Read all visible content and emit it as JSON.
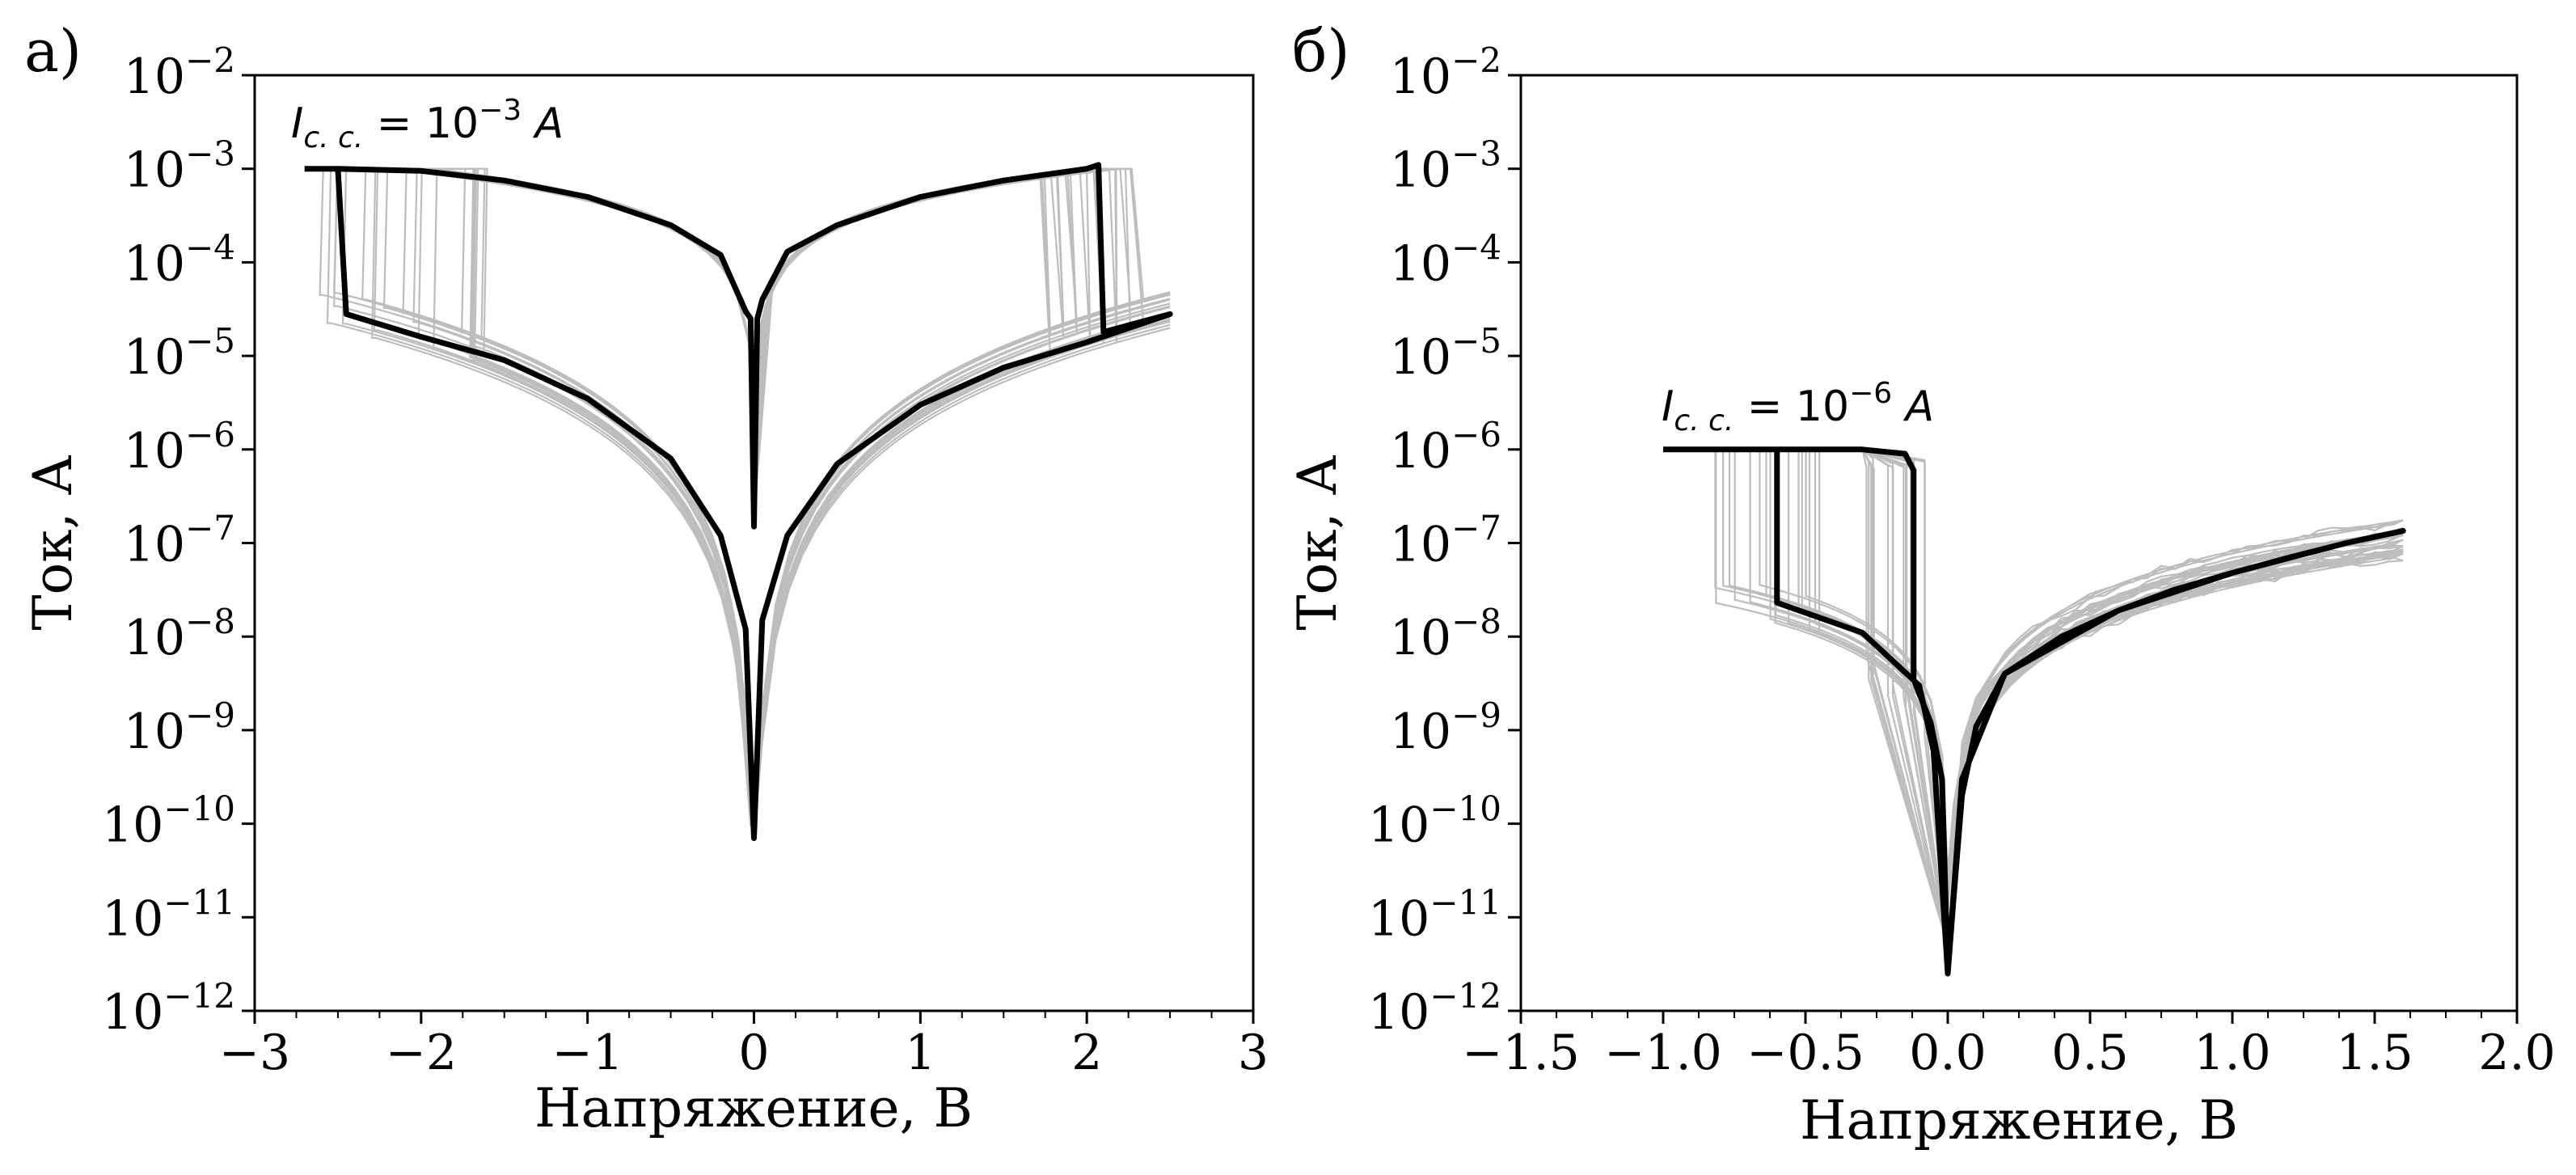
{
  "chart_data": [
    {
      "panel_label": "а)",
      "type": "line",
      "yscale": "log",
      "xlabel": "Напряжение, В",
      "ylabel": "Ток, А",
      "xlim": [
        -3,
        3
      ],
      "ylim": [
        1e-12,
        0.01
      ],
      "x_ticks": [
        -3,
        -2,
        -1,
        0,
        1,
        2,
        3
      ],
      "x_tick_labels": [
        "−3",
        "−2",
        "−1",
        "0",
        "1",
        "2",
        "3"
      ],
      "y_ticks": [
        1e-12,
        1e-11,
        1e-10,
        1e-09,
        1e-08,
        1e-07,
        1e-06,
        1e-05,
        0.0001,
        0.001,
        0.01
      ],
      "y_tick_exponents": [
        "−12",
        "−11",
        "−10",
        "−9",
        "−8",
        "−7",
        "−6",
        "−5",
        "−4",
        "−3",
        "−2"
      ],
      "annotation": {
        "sub": "c. c.",
        "exp": "−3",
        "unit": "A"
      },
      "colors": {
        "highlight": "#000000",
        "ensemble": "#bdbdbd"
      },
      "series": [
        {
          "role": "highlighted-cycle",
          "points": [
            [
              -2.7,
              0.001
            ],
            [
              -2.5,
              0.001
            ],
            [
              -2.0,
              0.00095
            ],
            [
              -1.5,
              0.00075
            ],
            [
              -1.0,
              0.0005
            ],
            [
              -0.5,
              0.00025
            ],
            [
              -0.2,
              0.00012
            ],
            [
              -0.05,
              3e-05
            ],
            [
              -0.02,
              2.5e-05
            ],
            [
              0.0,
              1.5e-07
            ],
            [
              0.02,
              2.5e-05
            ],
            [
              0.05,
              4e-05
            ],
            [
              0.2,
              0.00013
            ],
            [
              0.5,
              0.00025
            ],
            [
              1.0,
              0.0005
            ],
            [
              1.5,
              0.00075
            ],
            [
              2.0,
              0.001
            ],
            [
              2.07,
              0.0011
            ],
            [
              2.1,
              1.8e-05
            ],
            [
              2.5,
              2.8e-05
            ],
            [
              2.0,
              1.4e-05
            ],
            [
              1.5,
              7.5e-06
            ],
            [
              1.0,
              3e-06
            ],
            [
              0.5,
              7e-07
            ],
            [
              0.2,
              1.2e-07
            ],
            [
              0.05,
              1.5e-08
            ],
            [
              0.0,
              7e-11
            ],
            [
              -0.05,
              1.2e-08
            ],
            [
              -0.2,
              1.2e-07
            ],
            [
              -0.5,
              8e-07
            ],
            [
              -1.0,
              3.5e-06
            ],
            [
              -1.5,
              9e-06
            ],
            [
              -2.0,
              1.6e-05
            ],
            [
              -2.45,
              2.8e-05
            ],
            [
              -2.5,
              0.001
            ]
          ]
        }
      ],
      "ensemble": {
        "cycles": 20,
        "set_voltage_range": [
          -2.6,
          -1.6
        ],
        "reset_voltage_range": [
          1.7,
          2.3
        ],
        "hrs_scale_range": [
          0.55,
          1.7
        ],
        "lrs_scale_range": [
          0.9,
          1.1
        ]
      }
    },
    {
      "panel_label": "б)",
      "type": "line",
      "yscale": "log",
      "xlabel": "Напряжение, В",
      "ylabel": "Ток, А",
      "xlim": [
        -1.5,
        2.0
      ],
      "ylim": [
        1e-12,
        0.01
      ],
      "x_ticks": [
        -1.5,
        -1.0,
        -0.5,
        0.0,
        0.5,
        1.0,
        1.5,
        2.0
      ],
      "x_tick_labels": [
        "−1.5",
        "−1.0",
        "−0.5",
        "0.0",
        "0.5",
        "1.0",
        "1.5",
        "2.0"
      ],
      "y_ticks": [
        1e-12,
        1e-11,
        1e-10,
        1e-09,
        1e-08,
        1e-07,
        1e-06,
        1e-05,
        0.0001,
        0.001,
        0.01
      ],
      "y_tick_exponents": [
        "−12",
        "−11",
        "−10",
        "−9",
        "−8",
        "−7",
        "−6",
        "−5",
        "−4",
        "−3",
        "−2"
      ],
      "annotation": {
        "sub": "c. c.",
        "exp": "−6",
        "unit": "A"
      },
      "colors": {
        "highlight": "#000000",
        "ensemble": "#bdbdbd"
      },
      "series": [
        {
          "role": "highlighted-cycle",
          "points": [
            [
              -1.0,
              1e-06
            ],
            [
              -0.6,
              1e-06
            ],
            [
              -0.3,
              1e-06
            ],
            [
              -0.15,
              9e-07
            ],
            [
              -0.12,
              6e-07
            ],
            [
              -0.12,
              3.5e-09
            ],
            [
              -0.06,
              1.2e-09
            ],
            [
              -0.02,
              3e-10
            ],
            [
              0.0,
              2.5e-12
            ],
            [
              0.02,
              1.5e-11
            ],
            [
              0.05,
              2e-10
            ],
            [
              0.1,
              1.1e-09
            ],
            [
              0.2,
              4e-09
            ],
            [
              0.4,
              1e-08
            ],
            [
              0.6,
              1.9e-08
            ],
            [
              0.8,
              3.2e-08
            ],
            [
              1.0,
              4.8e-08
            ],
            [
              1.2,
              7e-08
            ],
            [
              1.4,
              1e-07
            ],
            [
              1.6,
              1.35e-07
            ],
            [
              1.4,
              1e-07
            ],
            [
              1.0,
              4.8e-08
            ],
            [
              0.6,
              1.9e-08
            ],
            [
              0.2,
              4e-09
            ],
            [
              0.05,
              3e-10
            ],
            [
              0.0,
              2.5e-12
            ],
            [
              -0.05,
              6e-10
            ],
            [
              -0.1,
              3e-09
            ],
            [
              -0.3,
              1.1e-08
            ],
            [
              -0.6,
              2.3e-08
            ],
            [
              -0.6,
              1e-06
            ]
          ]
        }
      ],
      "ensemble": {
        "cycles": 18,
        "set_voltage_range": [
          -0.82,
          -0.45
        ],
        "reset_voltage_range": [
          -0.3,
          -0.08
        ],
        "hrs_scale_range": [
          0.6,
          1.5
        ],
        "lrs_scale_range": [
          0.85,
          1.15
        ]
      }
    }
  ]
}
